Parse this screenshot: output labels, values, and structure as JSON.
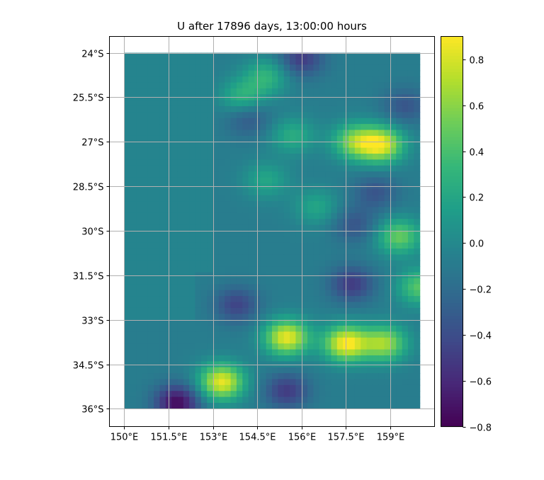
{
  "chart_data": {
    "type": "heatmap",
    "title": "U after 17896 days, 13:00:00 hours",
    "variable": "U",
    "x_ticks": [
      "150°E",
      "151.5°E",
      "153°E",
      "154.5°E",
      "156°E",
      "157.5°E",
      "159°E"
    ],
    "y_ticks": [
      "24°S",
      "25.5°S",
      "27°S",
      "28.5°S",
      "30°S",
      "31.5°S",
      "33°S",
      "34.5°S",
      "36°S"
    ],
    "x_range": [
      150.0,
      160.0
    ],
    "y_range": [
      -36.0,
      -24.0
    ],
    "xlim": [
      149.5,
      160.5
    ],
    "ylim": [
      -36.6,
      -23.45
    ],
    "grid": true,
    "colormap": "viridis",
    "colorbar": {
      "range": [
        -0.8,
        0.9
      ],
      "tick_values": [
        -0.8,
        -0.6,
        -0.4,
        -0.2,
        0.0,
        0.2,
        0.4,
        0.6,
        0.8
      ],
      "tick_labels": [
        "−0.8",
        "−0.6",
        "−0.4",
        "−0.2",
        "0.0",
        "0.2",
        "0.4",
        "0.6",
        "0.8"
      ]
    },
    "features": [
      {
        "lon": 153.3,
        "lat": -35.1,
        "value": 0.85
      },
      {
        "lon": 155.5,
        "lat": -33.6,
        "value": 0.85
      },
      {
        "lon": 157.5,
        "lat": -33.8,
        "value": 0.9
      },
      {
        "lon": 158.8,
        "lat": -33.8,
        "value": 0.65
      },
      {
        "lon": 158.7,
        "lat": -27.1,
        "value": 0.8
      },
      {
        "lon": 157.8,
        "lat": -27.0,
        "value": 0.55
      },
      {
        "lon": 159.3,
        "lat": -30.2,
        "value": 0.5
      },
      {
        "lon": 160.0,
        "lat": -31.9,
        "value": 0.45
      },
      {
        "lon": 151.8,
        "lat": -35.8,
        "value": -0.75
      },
      {
        "lon": 155.5,
        "lat": -35.4,
        "value": -0.5
      },
      {
        "lon": 157.7,
        "lat": -31.8,
        "value": -0.5
      },
      {
        "lon": 153.8,
        "lat": -32.5,
        "value": -0.45
      },
      {
        "lon": 156.0,
        "lat": -24.2,
        "value": -0.5
      },
      {
        "lon": 154.2,
        "lat": -26.2,
        "value": -0.35
      },
      {
        "lon": 159.5,
        "lat": -25.8,
        "value": -0.35
      },
      {
        "lon": 158.5,
        "lat": -28.7,
        "value": -0.35
      },
      {
        "lon": 157.8,
        "lat": -29.8,
        "value": -0.35
      },
      {
        "lon": 154.8,
        "lat": -24.8,
        "value": 0.3
      },
      {
        "lon": 154.0,
        "lat": -25.5,
        "value": 0.3
      },
      {
        "lon": 155.7,
        "lat": -26.8,
        "value": 0.25
      },
      {
        "lon": 154.8,
        "lat": -28.3,
        "value": 0.2
      },
      {
        "lon": 156.5,
        "lat": -29.2,
        "value": 0.2
      }
    ]
  }
}
